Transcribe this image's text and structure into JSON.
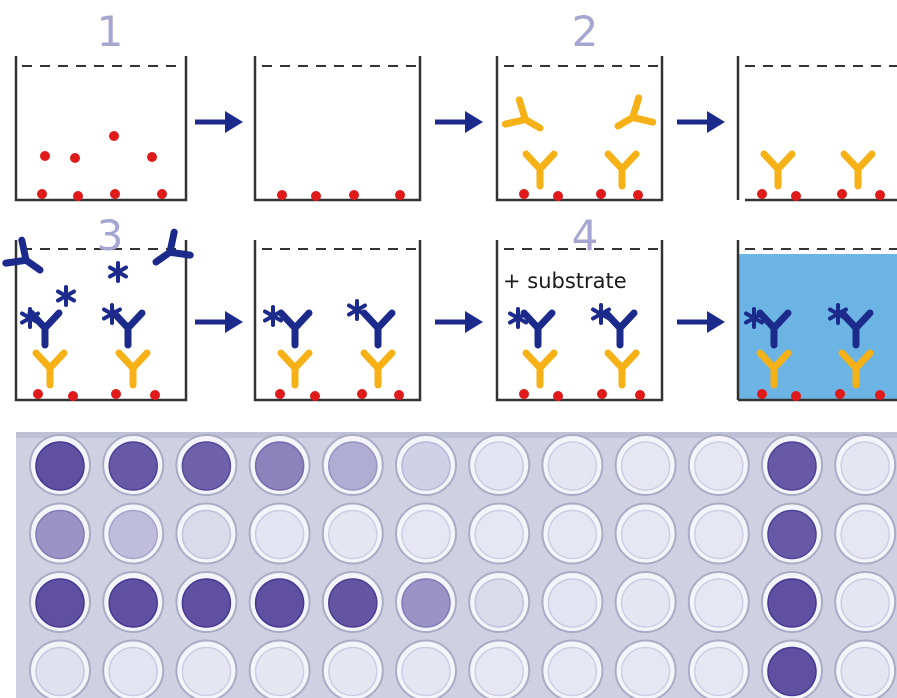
{
  "steps": [
    {
      "number": "1"
    },
    {
      "number": "2"
    },
    {
      "number": "3"
    },
    {
      "number": "4"
    }
  ],
  "substrate_label": "+ substrate",
  "colors": {
    "antigen": "#e01a1a",
    "capture_antibody": "#f5b115",
    "detection_antibody": "#1c2a8c",
    "arrow": "#1c2a8c",
    "substrate_fill": "#6cb4e4",
    "step_number": "#a6a6d2"
  },
  "plate": {
    "rows": 4,
    "columns": 12,
    "well_intensity": [
      [
        0.95,
        0.9,
        0.85,
        0.65,
        0.4,
        0.18,
        0.06,
        0.05,
        0.04,
        0.04,
        0.9,
        0.05
      ],
      [
        0.55,
        0.3,
        0.12,
        0.06,
        0.05,
        0.04,
        0.04,
        0.04,
        0.04,
        0.04,
        0.9,
        0.04
      ],
      [
        0.95,
        0.95,
        0.95,
        0.95,
        0.92,
        0.55,
        0.12,
        0.06,
        0.05,
        0.04,
        0.95,
        0.05
      ],
      [
        0.08,
        0.06,
        0.05,
        0.05,
        0.05,
        0.05,
        0.04,
        0.04,
        0.04,
        0.04,
        0.95,
        0.05
      ]
    ]
  }
}
